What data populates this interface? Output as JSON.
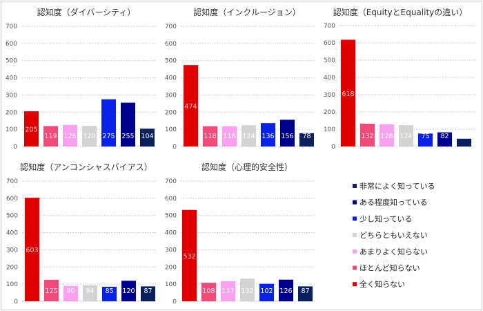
{
  "chart_data": [
    {
      "type": "bar",
      "title": "認知度（ダイバーシティ）",
      "categories": [
        "全く知らない",
        "ほとんど知らない",
        "あまりよく知らない",
        "どちらともいえない",
        "少し知っている",
        "ある程度知っている",
        "非常によく知っている"
      ],
      "values": [
        205,
        119,
        126,
        120,
        275,
        255,
        104
      ],
      "ylim": [
        0,
        700
      ],
      "yticks": [
        0,
        100,
        200,
        300,
        400,
        500,
        600,
        700
      ],
      "grid": true
    },
    {
      "type": "bar",
      "title": "認知度（インクルージョン）",
      "categories": [
        "全く知らない",
        "ほとんど知らない",
        "あまりよく知らない",
        "どちらともいえない",
        "少し知っている",
        "ある程度知っている",
        "非常によく知っている"
      ],
      "values": [
        474,
        118,
        118,
        124,
        136,
        156,
        78
      ],
      "ylim": [
        0,
        700
      ],
      "yticks": [
        0,
        100,
        200,
        300,
        400,
        500,
        600,
        700
      ],
      "grid": true
    },
    {
      "type": "bar",
      "title": "認知度（EquityとEqualityの違い）",
      "categories": [
        "全く知らない",
        "ほとんど知らない",
        "あまりよく知らない",
        "どちらともいえない",
        "少し知っている",
        "ある程度知っている",
        "非常によく知っている"
      ],
      "values": [
        618,
        132,
        128,
        124,
        75,
        82,
        45
      ],
      "ylim": [
        0,
        700
      ],
      "yticks": [
        0,
        100,
        200,
        300,
        400,
        500,
        600,
        700
      ],
      "grid": true
    },
    {
      "type": "bar",
      "title": "認知度（アンコンシャスバイアス）",
      "categories": [
        "全く知らない",
        "ほとんど知らない",
        "あまりよく知らない",
        "どちらともいえない",
        "少し知っている",
        "ある程度知っている",
        "非常によく知っている"
      ],
      "values": [
        603,
        125,
        90,
        94,
        85,
        120,
        87
      ],
      "ylim": [
        0,
        700
      ],
      "yticks": [
        0,
        100,
        200,
        300,
        400,
        500,
        600,
        700
      ],
      "grid": true
    },
    {
      "type": "bar",
      "title": "認知度（心理的安全性）",
      "categories": [
        "全く知らない",
        "ほとんど知らない",
        "あまりよく知らない",
        "どちらともいえない",
        "少し知っている",
        "ある程度知っている",
        "非常によく知っている"
      ],
      "values": [
        532,
        108,
        117,
        132,
        102,
        126,
        87
      ],
      "ylim": [
        0,
        700
      ],
      "yticks": [
        0,
        100,
        200,
        300,
        400,
        500,
        600,
        700
      ],
      "grid": true
    }
  ],
  "series_colors": [
    "#e00000",
    "#f04a7a",
    "#f9a0f0",
    "#d3d3d3",
    "#0a22e8",
    "#00008e",
    "#0a1f5c"
  ],
  "label_colors": [
    "#ffd0d0",
    "#ffe0ea",
    "#ffffff",
    "#ffffff",
    "#ffffff",
    "#ffffff",
    "#ffffff"
  ],
  "legend": {
    "placement": "bottom-right",
    "items": [
      "非常によく知っている",
      "ある程度知っている",
      "少し知っている",
      "どちらともいえない",
      "あまりよく知らない",
      "ほとんど知らない",
      "全く知らない"
    ]
  }
}
